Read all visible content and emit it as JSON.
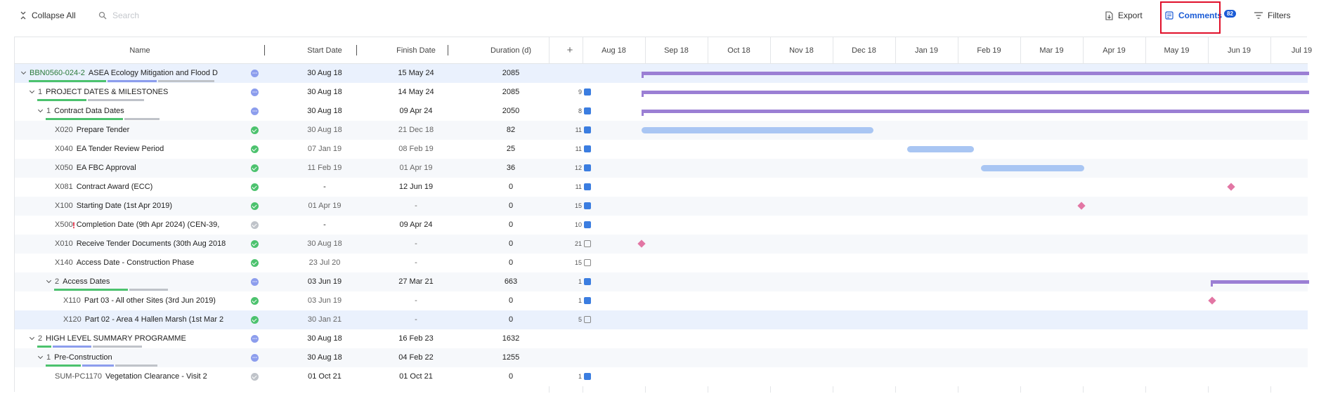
{
  "toolbar": {
    "collapse_all": "Collapse All",
    "search_placeholder": "Search",
    "export": "Export",
    "comments": "Comments",
    "comments_count": "82",
    "filters": "Filters"
  },
  "columns": {
    "name": "Name",
    "start_date": "Start Date",
    "finish_date": "Finish Date",
    "duration": "Duration (d)",
    "add": "+"
  },
  "timeline": [
    "Aug 18",
    "Sep 18",
    "Oct 18",
    "Nov 18",
    "Dec 18",
    "Jan 19",
    "Feb 19",
    "Mar 19",
    "Apr 19",
    "May 19",
    "Jun 19",
    "Jul 19"
  ],
  "rows": [
    {
      "code": "BBN0560-024-2",
      "name": "ASEA Ecology Mitigation and Flood D",
      "start": "30 Aug 18",
      "finish": "15 May 24",
      "duration": "2085",
      "comments": "",
      "status": "prog"
    },
    {
      "code": "1",
      "name": "PROJECT DATES & MILESTONES",
      "start": "30 Aug 18",
      "finish": "14 May 24",
      "duration": "2085",
      "comments": "9",
      "status": "prog"
    },
    {
      "code": "1",
      "name": "Contract Data Dates",
      "start": "30 Aug 18",
      "finish": "09 Apr 24",
      "duration": "2050",
      "comments": "8",
      "status": "prog"
    },
    {
      "code": "X020",
      "name": "Prepare Tender",
      "start": "30 Aug 18",
      "finish": "21 Dec 18",
      "duration": "82",
      "comments": "11",
      "status": "done"
    },
    {
      "code": "X040",
      "name": "EA Tender Review Period",
      "start": "07 Jan 19",
      "finish": "08 Feb 19",
      "duration": "25",
      "comments": "11",
      "status": "done"
    },
    {
      "code": "X050",
      "name": "EA FBC Approval",
      "start": "11 Feb 19",
      "finish": "01 Apr 19",
      "duration": "36",
      "comments": "12",
      "status": "done"
    },
    {
      "code": "X081",
      "name": "Contract Award (ECC)",
      "start": "-",
      "finish": "12 Jun 19",
      "duration": "0",
      "comments": "11",
      "status": "done"
    },
    {
      "code": "X100",
      "name": "Starting Date (1st Apr 2019)",
      "start": "01 Apr 19",
      "finish": "-",
      "duration": "0",
      "comments": "15",
      "status": "done"
    },
    {
      "code": "X500",
      "name": "Completion Date (9th Apr 2024) (CEN-39,",
      "start": "-",
      "finish": "09 Apr 24",
      "duration": "0",
      "comments": "10",
      "status": "none",
      "warn": "!"
    },
    {
      "code": "X010",
      "name": "Receive Tender Documents (30th Aug 2018",
      "start": "30 Aug 18",
      "finish": "-",
      "duration": "0",
      "comments": "21",
      "status": "done"
    },
    {
      "code": "X140",
      "name": "Access Date - Construction Phase",
      "start": "23 Jul 20",
      "finish": "-",
      "duration": "0",
      "comments": "15",
      "status": "done"
    },
    {
      "code": "2",
      "name": "Access Dates",
      "start": "03 Jun 19",
      "finish": "27 Mar 21",
      "duration": "663",
      "comments": "1",
      "status": "prog"
    },
    {
      "code": "X110",
      "name": "Part 03 - All other Sites (3rd Jun 2019)",
      "start": "03 Jun 19",
      "finish": "-",
      "duration": "0",
      "comments": "1",
      "status": "done"
    },
    {
      "code": "X120",
      "name": "Part 02 - Area 4 Hallen Marsh (1st Mar 2",
      "start": "30 Jan 21",
      "finish": "-",
      "duration": "0",
      "comments": "5",
      "status": "done"
    },
    {
      "code": "2",
      "name": "HIGH LEVEL SUMMARY PROGRAMME",
      "start": "30 Aug 18",
      "finish": "16 Feb 23",
      "duration": "1632",
      "comments": "",
      "status": "prog"
    },
    {
      "code": "1",
      "name": "Pre-Construction",
      "start": "30 Aug 18",
      "finish": "04 Feb 22",
      "duration": "1255",
      "comments": "",
      "status": "prog"
    },
    {
      "code": "SUM-PC1170",
      "name": "Vegetation Clearance - Visit 2",
      "start": "01 Oct 21",
      "finish": "01 Oct 21",
      "duration": "0",
      "comments": "1",
      "status": "none"
    }
  ],
  "colors": {
    "accent": "#1a5bd6",
    "summary_bar": "#9b7fd4",
    "task_bar": "#a9c6f3",
    "milestone": "#e276a4",
    "highlight": "#e0102a"
  }
}
